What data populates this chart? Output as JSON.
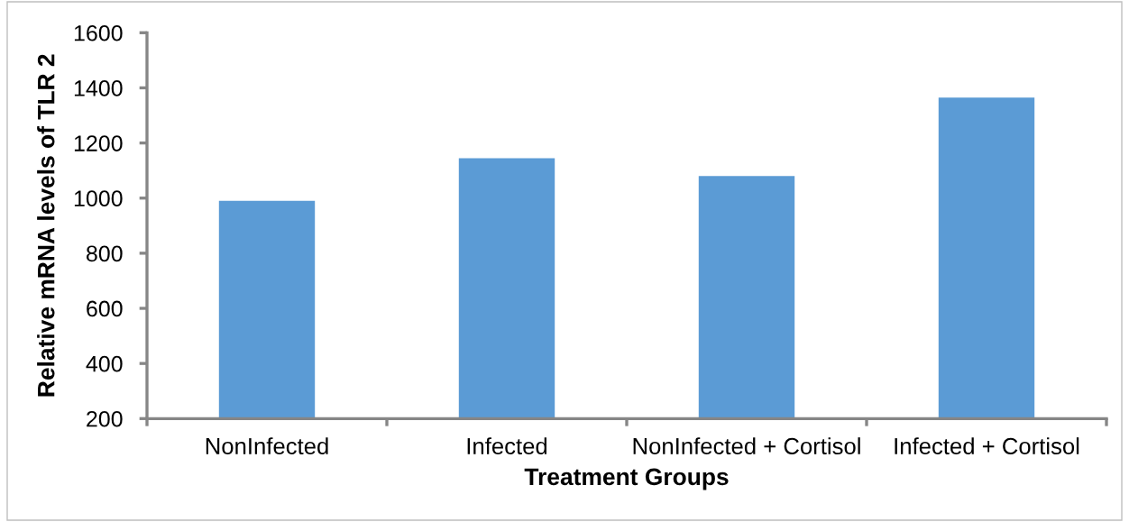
{
  "chart_data": {
    "type": "bar",
    "xlabel": "Treatment Groups",
    "ylabel": "Relative mRNA levels of TLR 2",
    "categories": [
      "NonInfected",
      "Infected",
      "NonInfected + Cortisol",
      "Infected + Cortisol"
    ],
    "values": [
      990,
      1145,
      1080,
      1365
    ],
    "color": "#5b9bd5",
    "ylim": [
      200,
      1600
    ],
    "yticks": [
      200,
      400,
      600,
      800,
      1000,
      1200,
      1400,
      1600
    ]
  }
}
